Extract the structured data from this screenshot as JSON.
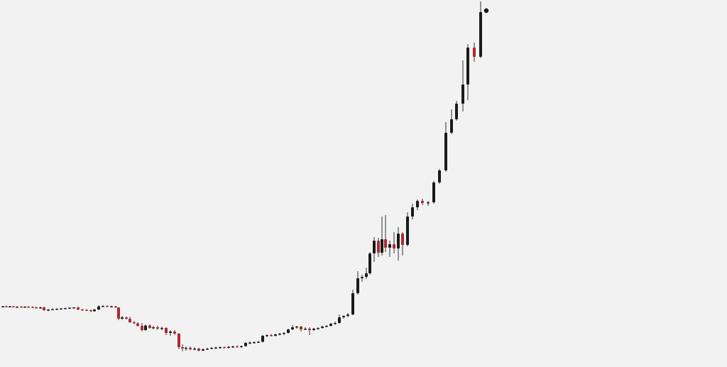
{
  "chart_data": {
    "type": "candlestick",
    "title": "",
    "xlabel": "",
    "ylabel": "",
    "grid": false,
    "legend": "none",
    "ylim": [
      0,
      517
    ],
    "colors": {
      "up": "#1a1a1a",
      "down": "#b3262e",
      "wick": "#333333",
      "marker": "#111111",
      "background": "#f2f2f2"
    },
    "candles": [
      {
        "x": 4,
        "o": 85,
        "h": 86,
        "l": 84,
        "c": 85.5
      },
      {
        "x": 9,
        "o": 85.5,
        "h": 86.5,
        "l": 84.5,
        "c": 85
      },
      {
        "x": 14,
        "o": 85,
        "h": 86,
        "l": 84,
        "c": 85.5
      },
      {
        "x": 19,
        "o": 85.5,
        "h": 86,
        "l": 84,
        "c": 84.5
      },
      {
        "x": 24,
        "o": 84.5,
        "h": 85.5,
        "l": 83.5,
        "c": 85
      },
      {
        "x": 30,
        "o": 85,
        "h": 86,
        "l": 84,
        "c": 84.5
      },
      {
        "x": 35,
        "o": 84.5,
        "h": 85.5,
        "l": 83.5,
        "c": 85
      },
      {
        "x": 40,
        "o": 85,
        "h": 86,
        "l": 84,
        "c": 84.5
      },
      {
        "x": 46,
        "o": 84.5,
        "h": 85.5,
        "l": 83.5,
        "c": 84
      },
      {
        "x": 51,
        "o": 84,
        "h": 85,
        "l": 82.5,
        "c": 83.5
      },
      {
        "x": 57,
        "o": 83.5,
        "h": 85,
        "l": 82,
        "c": 84
      },
      {
        "x": 62,
        "o": 84,
        "h": 85,
        "l": 79,
        "c": 80
      },
      {
        "x": 68,
        "o": 80,
        "h": 82,
        "l": 78.5,
        "c": 81
      },
      {
        "x": 74,
        "o": 81,
        "h": 82.5,
        "l": 80,
        "c": 81.5
      },
      {
        "x": 80,
        "o": 81.5,
        "h": 83,
        "l": 80.5,
        "c": 82
      },
      {
        "x": 86,
        "o": 82,
        "h": 83,
        "l": 81,
        "c": 82.5
      },
      {
        "x": 92,
        "o": 82.5,
        "h": 83.5,
        "l": 81.5,
        "c": 83
      },
      {
        "x": 98,
        "o": 83,
        "h": 84,
        "l": 82,
        "c": 83.5
      },
      {
        "x": 104,
        "o": 83.5,
        "h": 84.5,
        "l": 82.5,
        "c": 84
      },
      {
        "x": 110,
        "o": 84,
        "h": 85,
        "l": 80,
        "c": 81
      },
      {
        "x": 116,
        "o": 81,
        "h": 82,
        "l": 79.5,
        "c": 80.5
      },
      {
        "x": 122,
        "o": 80.5,
        "h": 81.5,
        "l": 79,
        "c": 80
      },
      {
        "x": 128,
        "o": 80,
        "h": 81,
        "l": 77.5,
        "c": 78.5
      },
      {
        "x": 133,
        "o": 78.5,
        "h": 82,
        "l": 78,
        "c": 81
      },
      {
        "x": 139,
        "o": 81,
        "h": 87,
        "l": 80,
        "c": 85.5
      },
      {
        "x": 145,
        "o": 85.5,
        "h": 87,
        "l": 84.5,
        "c": 86
      },
      {
        "x": 151,
        "o": 86,
        "h": 87,
        "l": 84.5,
        "c": 85
      },
      {
        "x": 157,
        "o": 85,
        "h": 86.5,
        "l": 84,
        "c": 85.5
      },
      {
        "x": 163,
        "o": 85.5,
        "h": 86,
        "l": 83,
        "c": 84
      },
      {
        "x": 167,
        "o": 84,
        "h": 84,
        "l": 66,
        "c": 68
      },
      {
        "x": 172,
        "o": 68,
        "h": 72,
        "l": 66.5,
        "c": 70
      },
      {
        "x": 178,
        "o": 70,
        "h": 71,
        "l": 67,
        "c": 68
      },
      {
        "x": 183,
        "o": 68,
        "h": 71,
        "l": 62,
        "c": 63
      },
      {
        "x": 189,
        "o": 63,
        "h": 65,
        "l": 60.5,
        "c": 61.5
      },
      {
        "x": 194,
        "o": 61.5,
        "h": 63,
        "l": 57,
        "c": 58
      },
      {
        "x": 200,
        "o": 58,
        "h": 62,
        "l": 50,
        "c": 52
      },
      {
        "x": 205,
        "o": 52,
        "h": 60,
        "l": 51,
        "c": 58.5
      },
      {
        "x": 211,
        "o": 58.5,
        "h": 60,
        "l": 54,
        "c": 55
      },
      {
        "x": 216,
        "o": 55,
        "h": 58,
        "l": 53,
        "c": 56
      },
      {
        "x": 222,
        "o": 56,
        "h": 58,
        "l": 52.5,
        "c": 54
      },
      {
        "x": 228,
        "o": 54,
        "h": 57,
        "l": 52,
        "c": 55
      },
      {
        "x": 234,
        "o": 55,
        "h": 56,
        "l": 45,
        "c": 48
      },
      {
        "x": 240,
        "o": 48,
        "h": 52,
        "l": 44,
        "c": 50
      },
      {
        "x": 246,
        "o": 50,
        "h": 52,
        "l": 45.5,
        "c": 47
      },
      {
        "x": 252,
        "o": 47,
        "h": 48,
        "l": 25,
        "c": 28
      },
      {
        "x": 257,
        "o": 28,
        "h": 32,
        "l": 22,
        "c": 26
      },
      {
        "x": 262,
        "o": 26,
        "h": 29,
        "l": 23,
        "c": 27
      },
      {
        "x": 268,
        "o": 27,
        "h": 29,
        "l": 23.5,
        "c": 25
      },
      {
        "x": 274,
        "o": 25,
        "h": 28,
        "l": 23.5,
        "c": 26
      },
      {
        "x": 280,
        "o": 26,
        "h": 27,
        "l": 22,
        "c": 23
      },
      {
        "x": 286,
        "o": 23,
        "h": 26,
        "l": 22.5,
        "c": 25
      },
      {
        "x": 292,
        "o": 25,
        "h": 27,
        "l": 24,
        "c": 26
      },
      {
        "x": 298,
        "o": 26,
        "h": 28,
        "l": 25,
        "c": 27
      },
      {
        "x": 304,
        "o": 27,
        "h": 28.5,
        "l": 25.5,
        "c": 27.5
      },
      {
        "x": 310,
        "o": 27.5,
        "h": 29,
        "l": 26,
        "c": 28
      },
      {
        "x": 316,
        "o": 28,
        "h": 29,
        "l": 26.5,
        "c": 27
      },
      {
        "x": 322,
        "o": 27,
        "h": 29.5,
        "l": 26,
        "c": 28.5
      },
      {
        "x": 328,
        "o": 28.5,
        "h": 30,
        "l": 27,
        "c": 29
      },
      {
        "x": 334,
        "o": 29,
        "h": 30.5,
        "l": 27.5,
        "c": 28.5
      },
      {
        "x": 340,
        "o": 28.5,
        "h": 30,
        "l": 27,
        "c": 29.5
      },
      {
        "x": 346,
        "o": 29.5,
        "h": 35,
        "l": 28.5,
        "c": 34
      },
      {
        "x": 352,
        "o": 34,
        "h": 36,
        "l": 32,
        "c": 34.5
      },
      {
        "x": 358,
        "o": 34.5,
        "h": 36,
        "l": 33,
        "c": 35
      },
      {
        "x": 364,
        "o": 35,
        "h": 37,
        "l": 34,
        "c": 35.5
      },
      {
        "x": 370,
        "o": 35.5,
        "h": 45,
        "l": 34.5,
        "c": 44
      },
      {
        "x": 376,
        "o": 44,
        "h": 46,
        "l": 42,
        "c": 45
      },
      {
        "x": 382,
        "o": 45,
        "h": 46.5,
        "l": 43,
        "c": 44
      },
      {
        "x": 388,
        "o": 44,
        "h": 47,
        "l": 43,
        "c": 46
      },
      {
        "x": 394,
        "o": 46,
        "h": 48,
        "l": 44.5,
        "c": 47
      },
      {
        "x": 400,
        "o": 47,
        "h": 49,
        "l": 45,
        "c": 48
      },
      {
        "x": 406,
        "o": 48,
        "h": 54,
        "l": 47,
        "c": 53
      },
      {
        "x": 412,
        "o": 53,
        "h": 59,
        "l": 52,
        "c": 56
      },
      {
        "x": 418,
        "o": 56,
        "h": 58,
        "l": 54,
        "c": 57
      },
      {
        "x": 424,
        "o": 57,
        "h": 58,
        "l": 50,
        "c": 53
      },
      {
        "x": 430,
        "o": 53,
        "h": 56,
        "l": 52,
        "c": 54
      },
      {
        "x": 436,
        "o": 54,
        "h": 56,
        "l": 45,
        "c": 52
      },
      {
        "x": 442,
        "o": 52,
        "h": 55,
        "l": 51,
        "c": 54
      },
      {
        "x": 448,
        "o": 54,
        "h": 56,
        "l": 52.5,
        "c": 55
      },
      {
        "x": 454,
        "o": 55,
        "h": 58,
        "l": 54,
        "c": 57
      },
      {
        "x": 460,
        "o": 57,
        "h": 59,
        "l": 56,
        "c": 58
      },
      {
        "x": 466,
        "o": 58,
        "h": 62,
        "l": 57,
        "c": 61
      },
      {
        "x": 472,
        "o": 61,
        "h": 64,
        "l": 59.5,
        "c": 62
      },
      {
        "x": 478,
        "o": 62,
        "h": 74,
        "l": 61,
        "c": 70
      },
      {
        "x": 484,
        "o": 70,
        "h": 73,
        "l": 68,
        "c": 72
      },
      {
        "x": 490,
        "o": 72,
        "h": 76,
        "l": 70,
        "c": 74
      },
      {
        "x": 497,
        "o": 74,
        "h": 109,
        "l": 73,
        "c": 104
      },
      {
        "x": 504,
        "o": 104,
        "h": 135,
        "l": 102,
        "c": 125
      },
      {
        "x": 510,
        "o": 125,
        "h": 130,
        "l": 120,
        "c": 127
      },
      {
        "x": 516,
        "o": 127,
        "h": 140,
        "l": 124,
        "c": 132
      },
      {
        "x": 521,
        "o": 132,
        "h": 162,
        "l": 130,
        "c": 160
      },
      {
        "x": 527,
        "o": 160,
        "h": 183,
        "l": 148,
        "c": 178
      },
      {
        "x": 533,
        "o": 178,
        "h": 182,
        "l": 155,
        "c": 161
      },
      {
        "x": 538,
        "o": 161,
        "h": 212,
        "l": 157,
        "c": 180
      },
      {
        "x": 543,
        "o": 180,
        "h": 214,
        "l": 162,
        "c": 168
      },
      {
        "x": 549,
        "o": 168,
        "h": 178,
        "l": 155,
        "c": 173
      },
      {
        "x": 555,
        "o": 173,
        "h": 190,
        "l": 160,
        "c": 167
      },
      {
        "x": 561,
        "o": 167,
        "h": 197,
        "l": 150,
        "c": 188
      },
      {
        "x": 567,
        "o": 188,
        "h": 190,
        "l": 157,
        "c": 172
      },
      {
        "x": 574,
        "o": 172,
        "h": 218,
        "l": 170,
        "c": 212
      },
      {
        "x": 581,
        "o": 212,
        "h": 230,
        "l": 208,
        "c": 225
      },
      {
        "x": 588,
        "o": 225,
        "h": 236,
        "l": 221,
        "c": 234
      },
      {
        "x": 595,
        "o": 234,
        "h": 237,
        "l": 228,
        "c": 231
      },
      {
        "x": 603,
        "o": 231,
        "h": 234,
        "l": 227,
        "c": 232
      },
      {
        "x": 611,
        "o": 232,
        "h": 262,
        "l": 230,
        "c": 260
      },
      {
        "x": 619,
        "o": 260,
        "h": 279,
        "l": 258,
        "c": 277
      },
      {
        "x": 628,
        "o": 277,
        "h": 345,
        "l": 275,
        "c": 330
      },
      {
        "x": 636,
        "o": 330,
        "h": 363,
        "l": 328,
        "c": 349
      },
      {
        "x": 643,
        "o": 349,
        "h": 375,
        "l": 347,
        "c": 371
      },
      {
        "x": 652,
        "o": 371,
        "h": 432,
        "l": 360,
        "c": 398
      },
      {
        "x": 659,
        "o": 398,
        "h": 455,
        "l": 376,
        "c": 450
      },
      {
        "x": 668,
        "o": 450,
        "h": 457,
        "l": 430,
        "c": 437
      },
      {
        "x": 677,
        "o": 437,
        "h": 515,
        "l": 435,
        "c": 500
      }
    ],
    "marker": {
      "x": 685,
      "y": 502
    }
  }
}
